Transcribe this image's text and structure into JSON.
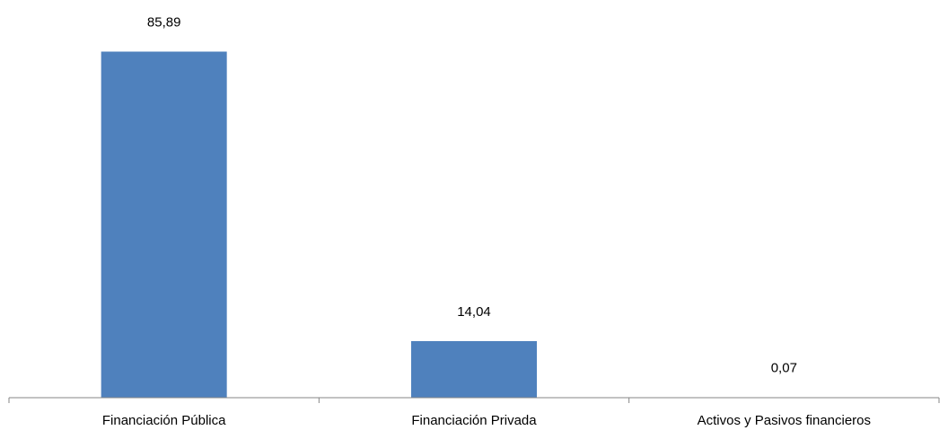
{
  "chart_data": {
    "type": "bar",
    "title": "",
    "xlabel": "",
    "ylabel": "",
    "categories": [
      "Financiación Pública",
      "Financiación Privada",
      "Activos y Pasivos financieros"
    ],
    "values": [
      85.89,
      14.04,
      0.07
    ],
    "value_labels": [
      "85,89",
      "14,04",
      "0,07"
    ],
    "ylim": [
      0,
      86
    ],
    "grid": false,
    "legend": "none",
    "colors": {
      "bar": "#4f81bd",
      "axis": "#868686",
      "text": "#000000"
    }
  }
}
